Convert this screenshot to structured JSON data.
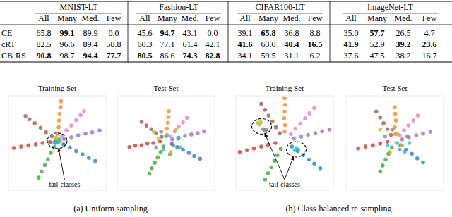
{
  "table": {
    "groups": [
      "MNIST-LT",
      "Fashion-LT",
      "CIFAR100-LT",
      "ImageNet-LT"
    ],
    "columns": [
      "All",
      "Many",
      "Med.",
      "Few"
    ],
    "rows": [
      {
        "method": "CE",
        "cells": [
          "65.8",
          "99.1",
          "89.9",
          "0.0",
          "45.6",
          "94.7",
          "43.1",
          "0.0",
          "39.1",
          "65.8",
          "36.8",
          "8.8",
          "35.0",
          "57.7",
          "26.5",
          "4.7"
        ],
        "bold": [
          false,
          true,
          false,
          false,
          false,
          true,
          false,
          false,
          false,
          true,
          false,
          false,
          false,
          true,
          false,
          false
        ]
      },
      {
        "method": "cRT",
        "cells": [
          "82.5",
          "96.6",
          "89.4",
          "58.8",
          "60.3",
          "77.1",
          "61.4",
          "42.1",
          "41.6",
          "63.0",
          "40.4",
          "16.5",
          "41.9",
          "52.9",
          "39.2",
          "23.6"
        ],
        "bold": [
          false,
          false,
          false,
          false,
          false,
          false,
          false,
          false,
          true,
          false,
          true,
          true,
          true,
          false,
          true,
          true
        ]
      },
      {
        "method": "CB-RS",
        "cells": [
          "90.8",
          "98.7",
          "94.4",
          "77.7",
          "80.5",
          "86.6",
          "74.3",
          "82.8",
          "34.1",
          "59.5",
          "31.1",
          "6.2",
          "37.6",
          "47.5",
          "38.2",
          "16.7"
        ],
        "bold": [
          true,
          false,
          true,
          true,
          true,
          false,
          true,
          true,
          false,
          false,
          false,
          false,
          false,
          false,
          false,
          false
        ]
      }
    ]
  },
  "captions": [
    "(a) Uniform sampling.",
    "(b) Class-balanced re-sampling."
  ],
  "chart_data": [
    {
      "type": "scatter",
      "title": "Training Set",
      "xlim": [
        -100,
        100
      ],
      "ylim": [
        -110,
        100
      ],
      "tick_labels": false,
      "marker": "circle",
      "annotations": [
        {
          "text": "tail-classes",
          "x": 15,
          "y": -102,
          "targets": [
            [
              0,
              0
            ]
          ]
        }
      ],
      "series": [
        {
          "color": "#d62728",
          "x": [
            -15,
            -30,
            -44,
            -59,
            -74,
            -89
          ],
          "values": [
            -3,
            -5,
            -8,
            -10,
            -13,
            -16
          ]
        },
        {
          "color": "#8c564b",
          "x": [
            -11,
            -23,
            -34,
            -46,
            -57,
            -65
          ],
          "values": [
            10,
            19,
            29,
            39,
            48,
            55
          ]
        },
        {
          "color": "#ff7f0e",
          "x": [
            1,
            3,
            4,
            5,
            7,
            8
          ],
          "values": [
            15,
            30,
            45,
            60,
            75,
            88
          ]
        },
        {
          "color": "#e377c2",
          "x": [
            10,
            19,
            29,
            39,
            48,
            55
          ],
          "values": [
            11,
            23,
            34,
            46,
            57,
            66
          ]
        },
        {
          "color": "#9467bd",
          "x": [
            14,
            29,
            43,
            58,
            72,
            87
          ],
          "values": [
            4,
            8,
            12,
            16,
            19,
            23
          ]
        },
        {
          "color": "#1f77b4",
          "x": [
            13,
            26,
            39,
            52,
            65,
            78
          ],
          "values": [
            -8,
            -15,
            -23,
            -30,
            -38,
            -45
          ]
        },
        {
          "color": "#2ca02c",
          "x": [
            -6,
            -13,
            -19,
            -25,
            -32,
            -38
          ],
          "values": [
            -14,
            -27,
            -41,
            -54,
            -68,
            -82
          ]
        },
        {
          "color": "#7f7f7f",
          "x": [
            -3,
            2,
            -6
          ],
          "values": [
            2,
            -4,
            -3
          ]
        },
        {
          "color": "#bcbd22",
          "x": [
            4,
            -2,
            6
          ],
          "values": [
            5,
            7,
            -1
          ]
        },
        {
          "color": "#17becf",
          "x": [
            0,
            5,
            -4
          ],
          "values": [
            -2,
            2,
            -6
          ]
        }
      ]
    },
    {
      "type": "scatter",
      "title": "Test Set",
      "xlim": [
        -100,
        100
      ],
      "ylim": [
        -110,
        100
      ],
      "tick_labels": false,
      "marker": "circle",
      "series": [
        {
          "color": "#d62728",
          "x": [
            -12,
            -26,
            -38,
            -50,
            -63,
            -75
          ],
          "values": [
            -1,
            -5,
            -6,
            -10,
            -11,
            -14
          ]
        },
        {
          "color": "#8c564b",
          "x": [
            -9,
            -20,
            -30,
            -40,
            -50
          ],
          "values": [
            9,
            17,
            26,
            34,
            42
          ]
        },
        {
          "color": "#ff7f0e",
          "x": [
            2,
            2,
            4,
            5,
            6
          ],
          "values": [
            13,
            27,
            40,
            53,
            66
          ]
        },
        {
          "color": "#e377c2",
          "x": [
            9,
            18,
            26,
            35,
            43
          ],
          "values": [
            10,
            21,
            31,
            41,
            51
          ]
        },
        {
          "color": "#9467bd",
          "x": [
            13,
            26,
            39,
            52,
            65,
            78
          ],
          "values": [
            3,
            7,
            11,
            14,
            17,
            21
          ]
        },
        {
          "color": "#1f77b4",
          "x": [
            12,
            23,
            35,
            47,
            58,
            70
          ],
          "values": [
            -7,
            -14,
            -20,
            -27,
            -34,
            -40
          ]
        },
        {
          "color": "#2ca02c",
          "x": [
            -5,
            -11,
            -17,
            -23,
            -29,
            -34
          ],
          "values": [
            -13,
            -25,
            -37,
            -49,
            -61,
            -73
          ]
        },
        {
          "color": "#7f7f7f",
          "x": [
            -10,
            15,
            -20,
            8
          ],
          "values": [
            20,
            -10,
            -15,
            -30
          ]
        },
        {
          "color": "#bcbd22",
          "x": [
            20,
            -15,
            10,
            -25
          ],
          "values": [
            25,
            5,
            -25,
            20
          ]
        },
        {
          "color": "#17becf",
          "x": [
            -5,
            25,
            0,
            30
          ],
          "values": [
            -20,
            5,
            10,
            -15
          ]
        }
      ]
    },
    {
      "type": "scatter",
      "title": "Training Set",
      "xlim": [
        -100,
        100
      ],
      "ylim": [
        -110,
        100
      ],
      "tick_labels": false,
      "marker": "circle",
      "annotations": [
        {
          "text": "tail-classes",
          "x": 0,
          "y": -102,
          "targets": [
            [
              -47,
              32
            ],
            [
              24,
              -19
            ]
          ]
        }
      ],
      "series": [
        {
          "color": "#d62728",
          "x": [
            -19,
            -34,
            -48,
            -63,
            -77,
            -92
          ],
          "values": [
            -5,
            -9,
            -13,
            -17,
            -21,
            -25
          ]
        },
        {
          "color": "#2ca02c",
          "x": [
            -8,
            -15,
            -21,
            -27,
            -34,
            -40
          ],
          "values": [
            -18,
            -32,
            -45,
            -59,
            -72,
            -86
          ]
        },
        {
          "color": "#1f77b4",
          "x": [
            15,
            27,
            38,
            50,
            61,
            73
          ],
          "values": [
            -13,
            -23,
            -32,
            -42,
            -51,
            -61
          ]
        },
        {
          "color": "#9467bd",
          "x": [
            19,
            34,
            48,
            63,
            77,
            92
          ],
          "values": [
            5,
            9,
            13,
            17,
            21,
            25
          ]
        },
        {
          "color": "#e377c2",
          "x": [
            13,
            22,
            32,
            42,
            51,
            61
          ],
          "values": [
            15,
            27,
            38,
            50,
            61,
            73
          ]
        },
        {
          "color": "#ff7f0e",
          "x": [
            0,
            1,
            -1,
            0,
            1,
            0
          ],
          "values": [
            20,
            35,
            50,
            65,
            80,
            95
          ]
        },
        {
          "color": "#8c564b",
          "x": [
            -10,
            -18,
            -25,
            -33,
            -40,
            -48
          ],
          "values": [
            17,
            30,
            43,
            56,
            69,
            82
          ]
        },
        {
          "color": "#7f7f7f",
          "x": [
            -40,
            -44,
            -37
          ],
          "values": [
            22,
            26,
            25
          ]
        },
        {
          "color": "#bcbd22",
          "x": [
            -52,
            -56,
            -49
          ],
          "values": [
            36,
            40,
            41
          ]
        },
        {
          "color": "#17becf",
          "x": [
            24,
            28,
            21
          ],
          "values": [
            -16,
            -20,
            -21
          ]
        }
      ]
    },
    {
      "type": "scatter",
      "title": "Test Set",
      "xlim": [
        -100,
        100
      ],
      "ylim": [
        -110,
        100
      ],
      "tick_labels": false,
      "marker": "circle",
      "series": [
        {
          "color": "#d62728",
          "x": [
            -15,
            -30,
            -45,
            -60,
            -75
          ],
          "values": [
            -2,
            -6,
            -10,
            -13,
            -17
          ]
        },
        {
          "color": "#2ca02c",
          "x": [
            -6,
            -13,
            -19,
            -25,
            -30
          ],
          "values": [
            -15,
            -29,
            -42,
            -55,
            -68
          ]
        },
        {
          "color": "#1f77b4",
          "x": [
            12,
            23,
            35,
            46,
            58
          ],
          "values": [
            -10,
            -20,
            -29,
            -39,
            -48
          ]
        },
        {
          "color": "#9467bd",
          "x": [
            15,
            29,
            44,
            58,
            73
          ],
          "values": [
            3,
            8,
            12,
            16,
            20
          ]
        },
        {
          "color": "#e377c2",
          "x": [
            10,
            19,
            28,
            38,
            47
          ],
          "values": [
            12,
            23,
            34,
            45,
            56
          ]
        },
        {
          "color": "#ff7f0e",
          "x": [
            1,
            0,
            2,
            1,
            0
          ],
          "values": [
            15,
            30,
            45,
            60,
            75
          ]
        },
        {
          "color": "#8c564b",
          "x": [
            -8,
            -15,
            -23,
            -30,
            -38
          ],
          "values": [
            13,
            26,
            39,
            52,
            65
          ]
        },
        {
          "color": "#7f7f7f",
          "x": [
            -20,
            10,
            -5,
            25
          ],
          "values": [
            10,
            -20,
            25,
            10
          ]
        },
        {
          "color": "#bcbd22",
          "x": [
            -30,
            5,
            15,
            -10
          ],
          "values": [
            25,
            15,
            -10,
            -25
          ]
        },
        {
          "color": "#17becf",
          "x": [
            20,
            -15,
            5,
            30
          ],
          "values": [
            -25,
            -10,
            -5,
            -5
          ]
        }
      ]
    }
  ]
}
